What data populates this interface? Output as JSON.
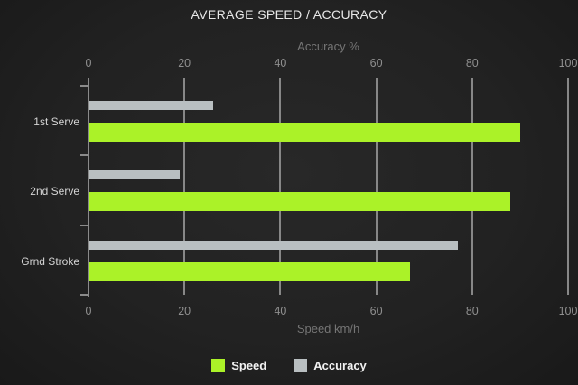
{
  "title": "AVERAGE SPEED / ACCURACY",
  "chart_data": {
    "type": "bar",
    "orientation": "horizontal",
    "title": "AVERAGE SPEED / ACCURACY",
    "categories": [
      "1st Serve",
      "2nd Serve",
      "Grnd Stroke"
    ],
    "series": [
      {
        "name": "Speed",
        "axis": "bottom",
        "color": "#abf228",
        "values": [
          90,
          88,
          67
        ]
      },
      {
        "name": "Accuracy",
        "axis": "top",
        "color": "#b9bfc1",
        "values": [
          26,
          19,
          77
        ]
      }
    ],
    "top_axis": {
      "label": "Accuracy %",
      "ticks": [
        0,
        20,
        40,
        60,
        80,
        100
      ],
      "range": [
        0,
        100
      ]
    },
    "bottom_axis": {
      "label": "Speed km/h",
      "ticks": [
        0,
        20,
        40,
        60,
        80,
        100
      ],
      "range": [
        0,
        100
      ]
    },
    "grid": true,
    "legend_position": "bottom",
    "legend": [
      "Speed",
      "Accuracy"
    ]
  },
  "colors": {
    "background_center": "#282828",
    "background_edge": "#191919",
    "title_text": "#e8e8e8",
    "axis_title_text": "#757575",
    "tick_label_text": "#8f8f8f",
    "category_label_text": "#d4d4d4",
    "gridline": "#878787",
    "speed_bar": "#abf228",
    "accuracy_bar": "#b9bfc1",
    "legend_text": "#f2f2f2"
  }
}
